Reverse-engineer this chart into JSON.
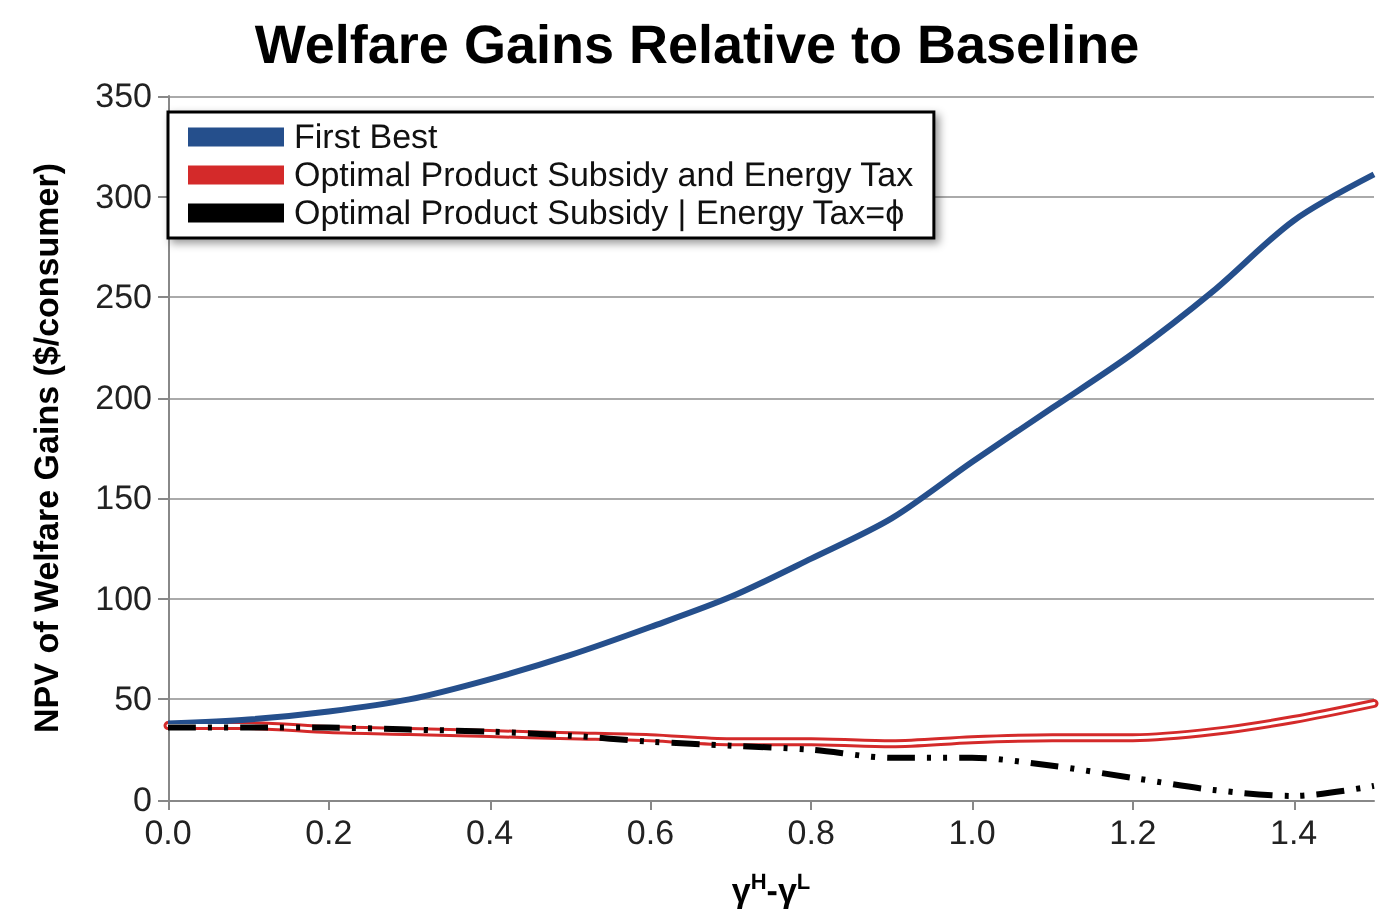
{
  "chart_data": {
    "type": "line",
    "title": "Welfare Gains Relative to Baseline",
    "xlabel": "γ$^{H}$-γ$^{L}$",
    "ylabel": "NPV of Welfare Gains ($/consumer)",
    "x": [
      0,
      0.1,
      0.2,
      0.3,
      0.4,
      0.5,
      0.6,
      0.7,
      0.8,
      0.9,
      1.0,
      1.1,
      1.2,
      1.3,
      1.4,
      1.5
    ],
    "series": [
      {
        "name": "First Best",
        "color": "#254f8c",
        "line_style": "solid",
        "values": [
          38,
          40,
          44,
          50,
          60,
          72,
          86,
          101,
          120,
          140,
          168,
          195,
          222,
          253,
          288,
          311
        ]
      },
      {
        "name": "Optimal Product Subsidy and Energy Tax",
        "color": "#d42a2a",
        "line_style": "solid",
        "values": [
          37,
          37,
          35,
          34,
          33,
          32,
          31,
          29,
          29,
          28,
          30,
          31,
          31,
          34,
          40,
          48
        ]
      },
      {
        "name": "Optimal Product Subsidy | Energy Tax=ϕ",
        "color": "#000000",
        "line_style": "dashed",
        "values": [
          36,
          36,
          36,
          35,
          34,
          32,
          29,
          27,
          25,
          21,
          21,
          17,
          11,
          5,
          2,
          7
        ]
      }
    ],
    "xlim": [
      0,
      1.5
    ],
    "xticks": [
      {
        "value": 0,
        "label": "0.0"
      },
      {
        "value": 0.2,
        "label": "0.2"
      },
      {
        "value": 0.4,
        "label": "0.4"
      },
      {
        "value": 0.6,
        "label": "0.6"
      },
      {
        "value": 0.8,
        "label": "0.8"
      },
      {
        "value": 1.0,
        "label": "1.0"
      },
      {
        "value": 1.2,
        "label": "1.2"
      },
      {
        "value": 1.4,
        "label": "1.4"
      }
    ],
    "ylim": [
      0,
      350
    ],
    "yticks": [
      0,
      50,
      100,
      150,
      200,
      250,
      300,
      350
    ],
    "grid": "y",
    "legend": "top left",
    "marker": "none"
  }
}
